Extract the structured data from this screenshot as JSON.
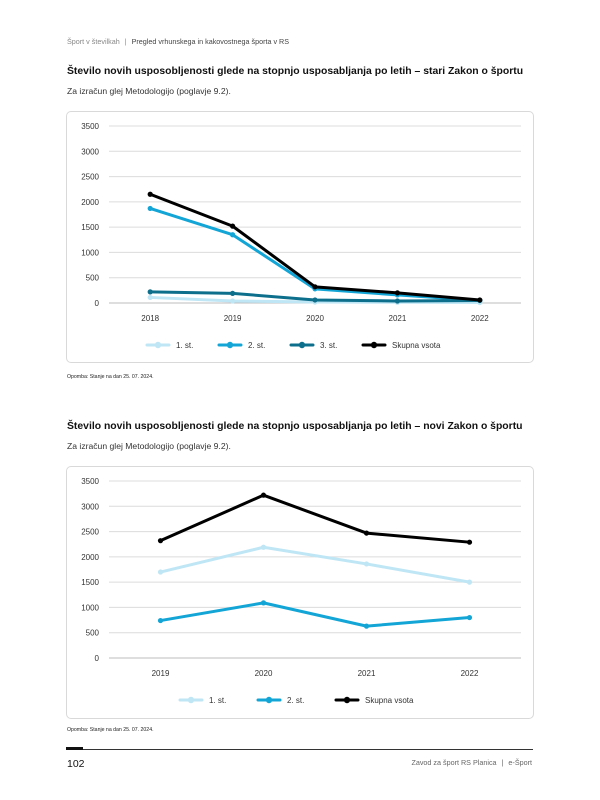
{
  "header": {
    "section": "Šport v številkah",
    "separator": "|",
    "title": "Pregled vrhunskega in kakovostnega športa v RS"
  },
  "sections": [
    {
      "title": "Število novih usposobljenosti glede na stopnjo usposabljanja po letih – stari Zakon o športu",
      "subtitle": "Za izračun glej Metodologijo (poglavje 9.2).",
      "note": "Opomba: Stanje na dan 25. 07. 2024."
    },
    {
      "title": "Število novih usposobljenosti glede na stopnjo usposabljanja po letih – novi Zakon o športu",
      "subtitle": "Za izračun glej Metodologijo (poglavje 9.2).",
      "note": "Opomba: Stanje na dan 25. 07. 2024."
    }
  ],
  "chart_data": [
    {
      "type": "line",
      "title": "",
      "x": [
        "2018",
        "2019",
        "2020",
        "2021",
        "2022"
      ],
      "ylim": [
        0,
        3500
      ],
      "yticks": [
        0,
        500,
        1000,
        1500,
        2000,
        2500,
        3000,
        3500
      ],
      "grid": true,
      "legend_position": "bottom",
      "series": [
        {
          "name": "1. st.",
          "color": "#bfe6f5",
          "values": [
            110,
            40,
            20,
            15,
            10
          ]
        },
        {
          "name": "2. st.",
          "color": "#12a5d6",
          "values": [
            1870,
            1350,
            280,
            160,
            50
          ]
        },
        {
          "name": "3. st.",
          "color": "#0d6f8c",
          "values": [
            220,
            190,
            60,
            40,
            50
          ]
        },
        {
          "name": "Skupna vsota",
          "color": "#000000",
          "values": [
            2150,
            1520,
            320,
            200,
            60
          ]
        }
      ]
    },
    {
      "type": "line",
      "title": "",
      "x": [
        "2019",
        "2020",
        "2021",
        "2022"
      ],
      "ylim": [
        0,
        3500
      ],
      "yticks": [
        0,
        500,
        1000,
        1500,
        2000,
        2500,
        3000,
        3500
      ],
      "grid": true,
      "legend_position": "bottom",
      "series": [
        {
          "name": "1. st.",
          "color": "#bfe6f5",
          "values": [
            1700,
            2190,
            1860,
            1500
          ]
        },
        {
          "name": "2. st.",
          "color": "#12a5d6",
          "values": [
            740,
            1090,
            630,
            800
          ]
        },
        {
          "name": "Skupna vsota",
          "color": "#000000",
          "values": [
            2320,
            3220,
            2470,
            2290
          ]
        }
      ]
    }
  ],
  "footer": {
    "page_number": "102",
    "publisher": "Zavod za šport RS Planica",
    "separator": "|",
    "product": "e-Šport"
  }
}
